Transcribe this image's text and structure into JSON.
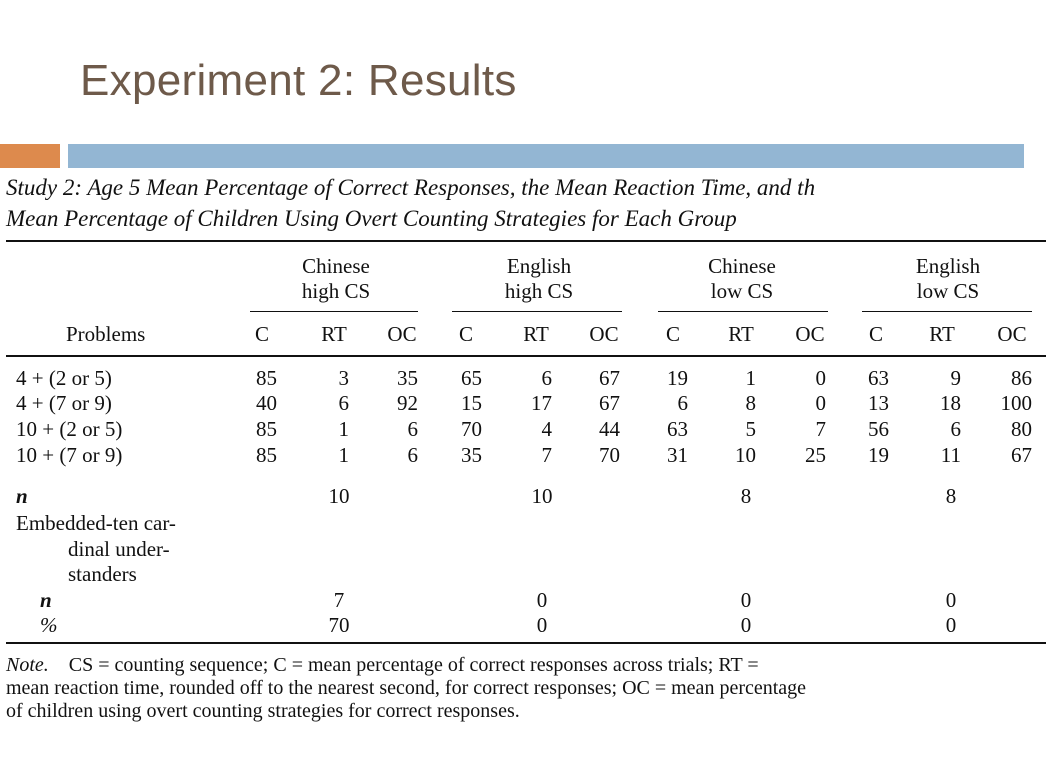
{
  "slide": {
    "title": "Experiment 2: Results"
  },
  "table": {
    "caption_line1": "Study 2: Age 5 Mean Percentage of Correct Responses, the Mean Reaction Time, and th",
    "caption_line2": "Mean Percentage of Children Using Overt Counting Strategies for Each Group",
    "groups": [
      {
        "line1": "Chinese",
        "line2": "high CS"
      },
      {
        "line1": "English",
        "line2": "high CS"
      },
      {
        "line1": "Chinese",
        "line2": "low CS"
      },
      {
        "line1": "English",
        "line2": "low CS"
      }
    ],
    "problems_header": "Problems",
    "subheaders": [
      "C",
      "RT",
      "OC",
      "C",
      "RT",
      "OC",
      "C",
      "RT",
      "OC",
      "C",
      "RT",
      "OC"
    ],
    "rows": [
      {
        "label": "4 + (2 or 5)",
        "values": [
          "85",
          "3",
          "35",
          "65",
          "6",
          "67",
          "19",
          "1",
          "0",
          "63",
          "9",
          "86"
        ]
      },
      {
        "label": "4 + (7 or 9)",
        "values": [
          "40",
          "6",
          "92",
          "15",
          "17",
          "67",
          "6",
          "8",
          "0",
          "13",
          "18",
          "100"
        ]
      },
      {
        "label": "10 + (2 or 5)",
        "values": [
          "85",
          "1",
          "6",
          "70",
          "4",
          "44",
          "63",
          "5",
          "7",
          "56",
          "6",
          "80"
        ]
      },
      {
        "label": "10 + (7 or 9)",
        "values": [
          "85",
          "1",
          "6",
          "35",
          "7",
          "70",
          "31",
          "10",
          "25",
          "19",
          "11",
          "67"
        ]
      }
    ],
    "n_label": "n",
    "n_values": [
      "10",
      "10",
      "8",
      "8"
    ],
    "embedded_line1": "Embedded-ten car-",
    "embedded_line2": "dinal under-",
    "embedded_line3": "standers",
    "embedded_n_label": "n",
    "embedded_n_values": [
      "7",
      "0",
      "0",
      "0"
    ],
    "embedded_pct_label": "%",
    "embedded_pct_values": [
      "70",
      "0",
      "0",
      "0"
    ],
    "note_label": "Note.",
    "note_line1": "CS = counting sequence; C = mean percentage of correct responses across trials; RT =",
    "note_line2": "mean reaction time, rounded off to the nearest second, for correct responses; OC = mean percentage",
    "note_line3": "of children using overt counting strategies for correct responses."
  }
}
